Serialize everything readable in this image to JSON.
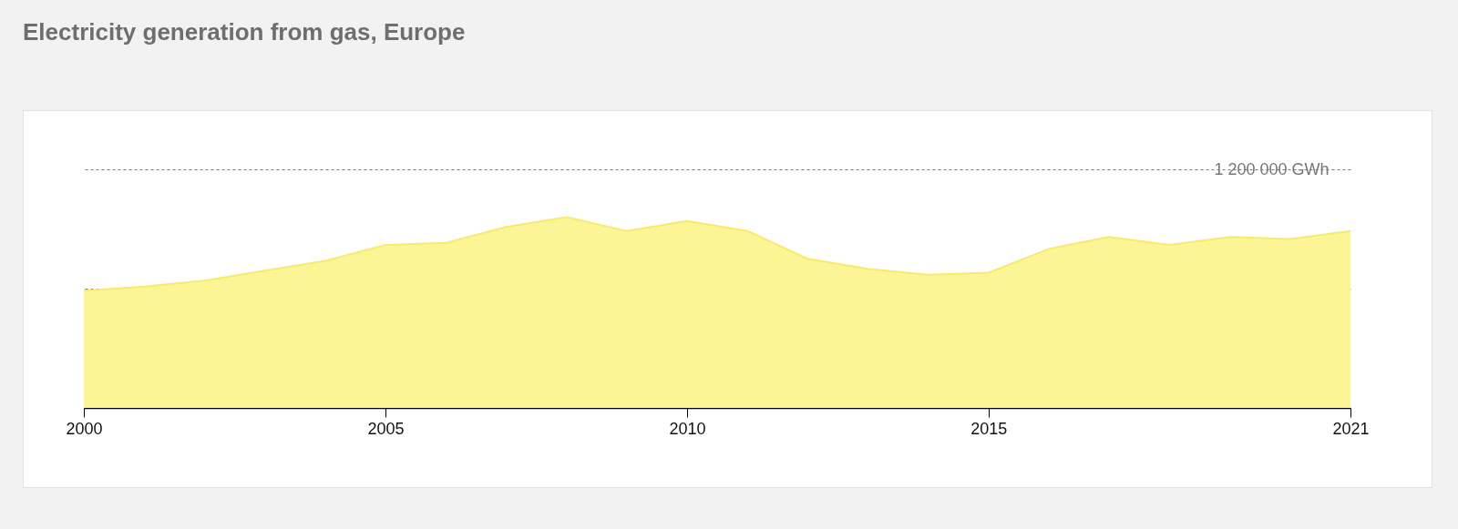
{
  "chart_data": {
    "type": "area",
    "title": "Electricity generation from gas, Europe",
    "x": [
      2000,
      2001,
      2002,
      2003,
      2004,
      2005,
      2006,
      2007,
      2008,
      2009,
      2010,
      2011,
      2012,
      2013,
      2014,
      2015,
      2016,
      2017,
      2018,
      2019,
      2020,
      2021
    ],
    "series": [
      {
        "color": "#fcf596",
        "values": [
          590000,
          610000,
          640000,
          690000,
          740000,
          820000,
          830000,
          910000,
          960000,
          890000,
          940000,
          890000,
          750000,
          700000,
          670000,
          680000,
          800000,
          860000,
          820000,
          860000,
          850000,
          890000
        ]
      }
    ],
    "xlim": [
      2000,
      2021
    ],
    "xticks": [
      2000,
      2005,
      2010,
      2015,
      2021
    ],
    "ylim": [
      0,
      1200000
    ],
    "yticks": [
      {
        "value": 600000,
        "label": null
      },
      {
        "value": 1200000,
        "label": "1 200 000 GWh"
      }
    ],
    "grid": "y"
  }
}
